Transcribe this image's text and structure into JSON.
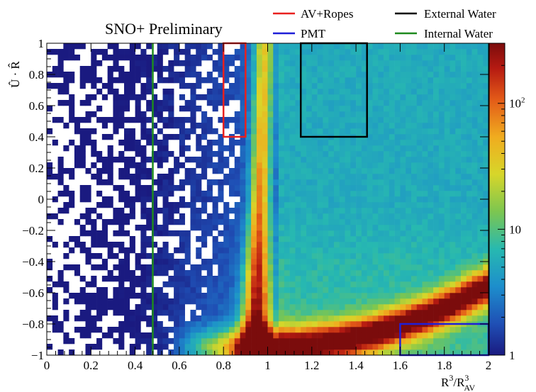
{
  "chart_data": {
    "type": "heatmap",
    "title": "SNO+ Preliminary",
    "xlabel": "R³/R³AV",
    "xlabel_parts": {
      "main": "R",
      "sup1": "3",
      "slash": "/R",
      "sup2": "3",
      "sub2": "AV"
    },
    "ylabel": "Û · R̂",
    "xlim": [
      0,
      2
    ],
    "ylim": [
      -1,
      1
    ],
    "x_ticks": [
      "0",
      "0.2",
      "0.4",
      "0.6",
      "0.8",
      "1",
      "1.2",
      "1.4",
      "1.6",
      "1.8",
      "2"
    ],
    "y_ticks": [
      "−1",
      "−0.8",
      "−0.6",
      "−0.4",
      "−0.2",
      "0",
      "0.2",
      "0.4",
      "0.6",
      "0.8",
      "1"
    ],
    "colorbar": {
      "scale": "log",
      "range": [
        1,
        300
      ],
      "ticks": [
        {
          "value": 1,
          "label": "1"
        },
        {
          "value": 10,
          "label": "10"
        },
        {
          "value": 100,
          "label": "10",
          "sup": "2"
        }
      ]
    },
    "regions": [
      {
        "name": "AV+Ropes",
        "color": "#e8201f",
        "x": [
          0.8,
          0.9
        ],
        "y": [
          0.4,
          1.0
        ]
      },
      {
        "name": "External Water",
        "color": "#000000",
        "x": [
          1.15,
          1.45
        ],
        "y": [
          0.4,
          1.0
        ]
      },
      {
        "name": "PMT",
        "color": "#1f1fd8",
        "x": [
          1.6,
          2.0
        ],
        "y": [
          -1.0,
          -0.8
        ]
      }
    ],
    "lines": [
      {
        "name": "Internal Water",
        "color": "#1e8a1e",
        "x": 0.48
      }
    ],
    "legend": {
      "placement": "top",
      "entries": [
        {
          "label": "AV+Ropes",
          "color": "#e8201f"
        },
        {
          "label": "External Water",
          "color": "#000000"
        },
        {
          "label": "PMT",
          "color": "#1f1fd8"
        },
        {
          "label": "Internal Water",
          "color": "#1e8a1e"
        }
      ]
    }
  }
}
